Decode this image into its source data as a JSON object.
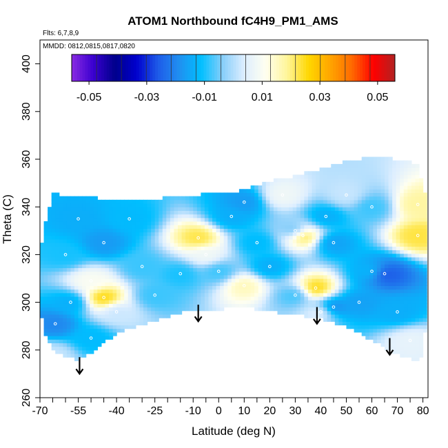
{
  "chart_data": {
    "type": "heatmap",
    "title": "ATOM1 Northbound fC4H9_PM1_AMS",
    "flights_label": "Flts: 6,7,8,9",
    "dates_label": "MMDD: 0812,0815,0817,0820",
    "xlabel": "Latitude (deg N)",
    "ylabel": "Theta (C)",
    "xlim": [
      -70,
      82
    ],
    "ylim": [
      260,
      410
    ],
    "x_tick_labels": [
      "-70",
      "-55",
      "-40",
      "-25",
      "-10",
      "0",
      "10",
      "20",
      "30",
      "40",
      "50",
      "60",
      "70",
      "80"
    ],
    "x_tick_values": [
      -70,
      -55,
      -40,
      -25,
      -10,
      0,
      10,
      20,
      30,
      40,
      50,
      60,
      70,
      80
    ],
    "x_minor_ticks": [
      -65,
      -60,
      -50,
      -45,
      -35,
      -30,
      -20,
      -15,
      -5,
      5,
      15,
      25,
      35,
      45,
      55,
      65,
      75
    ],
    "y_tick_labels": [
      "260",
      "280",
      "300",
      "320",
      "340",
      "360",
      "380",
      "400"
    ],
    "y_tick_values": [
      260,
      280,
      300,
      320,
      340,
      360,
      380,
      400
    ],
    "colorbar": {
      "tick_labels": [
        "-0.05",
        "-0.03",
        "-0.01",
        "0.01",
        "0.03",
        "0.05"
      ],
      "tick_values": [
        -0.05,
        -0.03,
        -0.01,
        0.01,
        0.03,
        0.05
      ],
      "range": [
        -0.056,
        0.056
      ],
      "colors": [
        "#8a2be2",
        "#3a00d0",
        "#00008b",
        "#0000cd",
        "#1e5be8",
        "#2090f0",
        "#00bfff",
        "#87cefa",
        "#ddeeff",
        "#fffff0",
        "#fff59a",
        "#ffd700",
        "#ffa500",
        "#ff6a00",
        "#ff0000",
        "#b22222"
      ]
    },
    "field_boundary": [
      [
        -70,
        312
      ],
      [
        -69,
        288
      ],
      [
        -66,
        282
      ],
      [
        -62,
        278
      ],
      [
        -55,
        276
      ],
      [
        -50,
        279
      ],
      [
        -45,
        283
      ],
      [
        -38,
        288
      ],
      [
        -28,
        291
      ],
      [
        -20,
        294
      ],
      [
        -10,
        297
      ],
      [
        0,
        297
      ],
      [
        10,
        298
      ],
      [
        20,
        296
      ],
      [
        30,
        295
      ],
      [
        40,
        293
      ],
      [
        50,
        290
      ],
      [
        60,
        284
      ],
      [
        70,
        278
      ],
      [
        79,
        275
      ],
      [
        81,
        290
      ],
      [
        81,
        345
      ],
      [
        78,
        358
      ],
      [
        70,
        360
      ],
      [
        60,
        361
      ],
      [
        50,
        359
      ],
      [
        40,
        356
      ],
      [
        30,
        353
      ],
      [
        20,
        351
      ],
      [
        10,
        347
      ],
      [
        0,
        346
      ],
      [
        -10,
        345
      ],
      [
        -20,
        344
      ],
      [
        -30,
        343
      ],
      [
        -40,
        343
      ],
      [
        -50,
        344
      ],
      [
        -60,
        344
      ],
      [
        -65,
        346
      ],
      [
        -68,
        333
      ],
      [
        -70,
        320
      ]
    ],
    "features": [
      {
        "lat": -64,
        "theta": 291,
        "value": -0.018
      },
      {
        "lat": -58,
        "theta": 300,
        "value": -0.012
      },
      {
        "lat": -50,
        "theta": 285,
        "value": -0.01
      },
      {
        "lat": -45,
        "theta": 302,
        "value": 0.028
      },
      {
        "lat": -50,
        "theta": 309,
        "value": 0.012
      },
      {
        "lat": -40,
        "theta": 296,
        "value": 0.004
      },
      {
        "lat": -55,
        "theta": 335,
        "value": -0.012
      },
      {
        "lat": -45,
        "theta": 325,
        "value": -0.015
      },
      {
        "lat": -35,
        "theta": 335,
        "value": -0.01
      },
      {
        "lat": -60,
        "theta": 320,
        "value": -0.008
      },
      {
        "lat": -30,
        "theta": 315,
        "value": -0.006
      },
      {
        "lat": -15,
        "theta": 312,
        "value": -0.008
      },
      {
        "lat": -8,
        "theta": 327,
        "value": 0.025
      },
      {
        "lat": -5,
        "theta": 320,
        "value": 0.01
      },
      {
        "lat": 0,
        "theta": 313,
        "value": -0.006
      },
      {
        "lat": 5,
        "theta": 336,
        "value": -0.012
      },
      {
        "lat": 10,
        "theta": 342,
        "value": -0.015
      },
      {
        "lat": 10,
        "theta": 307,
        "value": 0.018
      },
      {
        "lat": 15,
        "theta": 325,
        "value": -0.01
      },
      {
        "lat": 20,
        "theta": 315,
        "value": -0.012
      },
      {
        "lat": 30,
        "theta": 330,
        "value": -0.006
      },
      {
        "lat": 25,
        "theta": 345,
        "value": 0.01
      },
      {
        "lat": 33,
        "theta": 328,
        "value": 0.028
      },
      {
        "lat": 38,
        "theta": 306,
        "value": 0.028
      },
      {
        "lat": 40,
        "theta": 296,
        "value": 0.008
      },
      {
        "lat": 45,
        "theta": 298,
        "value": -0.018
      },
      {
        "lat": 45,
        "theta": 325,
        "value": -0.014
      },
      {
        "lat": 42,
        "theta": 336,
        "value": -0.012
      },
      {
        "lat": 55,
        "theta": 300,
        "value": -0.014
      },
      {
        "lat": 60,
        "theta": 313,
        "value": -0.01
      },
      {
        "lat": 65,
        "theta": 312,
        "value": -0.025
      },
      {
        "lat": 70,
        "theta": 296,
        "value": -0.012
      },
      {
        "lat": 75,
        "theta": 284,
        "value": 0.008
      },
      {
        "lat": 78,
        "theta": 328,
        "value": 0.025
      },
      {
        "lat": 78,
        "theta": 341,
        "value": 0.02
      },
      {
        "lat": 60,
        "theta": 340,
        "value": -0.006
      },
      {
        "lat": 50,
        "theta": 345,
        "value": 0.004
      },
      {
        "lat": -25,
        "theta": 303,
        "value": -0.006
      },
      {
        "lat": -65,
        "theta": 278,
        "value": 0.004
      },
      {
        "lat": 30,
        "theta": 303,
        "value": -0.006
      }
    ],
    "arrows": [
      {
        "lat": -54.5,
        "theta_top": 277,
        "theta_bottom": 270
      },
      {
        "lat": -8,
        "theta_top": 299,
        "theta_bottom": 292
      },
      {
        "lat": 38.5,
        "theta_top": 298,
        "theta_bottom": 291
      },
      {
        "lat": 67,
        "theta_top": 285,
        "theta_bottom": 278
      }
    ]
  }
}
